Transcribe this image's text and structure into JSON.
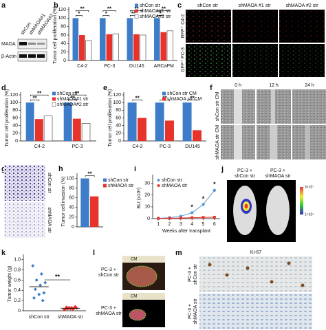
{
  "panel_labels": [
    "a",
    "b",
    "c",
    "d",
    "e",
    "f",
    "g",
    "h",
    "i",
    "j",
    "k",
    "l",
    "m"
  ],
  "blot": {
    "lanes": [
      "shCon",
      "shMAOA#1",
      "shMAOA#2"
    ],
    "proteins": [
      "MAOA",
      "β-Actin"
    ]
  },
  "fluorescence": {
    "columns": [
      "shCon str",
      "shMAOA #1 str",
      "shMAOA #2 str"
    ],
    "rows": [
      "RFP⁺ C4-2",
      "GFP⁺ PC-3"
    ]
  },
  "scratch": {
    "columns": [
      "0 h",
      "12 h",
      "24 h"
    ],
    "rows": [
      "shCon str CM",
      "shMAOA str CM"
    ]
  },
  "invasion_images": {
    "rows": [
      "shCon str",
      "shMAOA str"
    ]
  },
  "bli_images": {
    "mice": [
      [
        "PC-3 +",
        "shCon str"
      ],
      [
        "PC-3 +",
        "shMAOA str"
      ]
    ],
    "scale": [
      "3×10⁷",
      "1×10⁵"
    ]
  },
  "tumor_images": {
    "ruler": "CM",
    "rows": [
      [
        "PC-3 +",
        "shCon str"
      ],
      [
        "PC-3 +",
        "shMAOA str"
      ]
    ]
  },
  "ki67": {
    "title": "Ki-67",
    "rows": [
      [
        "PC-3 +",
        "shCon str"
      ],
      [
        "PC-3 +",
        "shMAOA str"
      ]
    ]
  },
  "chart_data": [
    {
      "type": "bar",
      "ylabel": "Tumor cell proliferation (%)",
      "categories": [
        "C4-2",
        "PC-3",
        "DU145",
        "ARCaPM"
      ],
      "series": [
        {
          "name": "shCon str",
          "color": "#3d7cc9",
          "values": [
            100,
            100,
            100,
            100
          ]
        },
        {
          "name": "shMAOA#1 str",
          "color": "#e8332a",
          "values": [
            60,
            62,
            62,
            67
          ]
        },
        {
          "name": "shMAOA#2 str",
          "color": "#ffffff",
          "values": [
            47,
            63,
            60,
            70
          ]
        }
      ],
      "significance": [
        [
          "*",
          "**"
        ],
        [
          "*",
          "**"
        ],
        [
          "**",
          "**"
        ],
        [
          "*",
          "**"
        ]
      ],
      "ylim": [
        0,
        120
      ],
      "yticks": [
        0,
        20,
        40,
        60,
        80,
        100,
        120
      ]
    },
    {
      "type": "bar",
      "ylabel": "Tumor cell proliferation (%)",
      "categories": [
        "C4-2",
        "PC-3"
      ],
      "series": [
        {
          "name": "shCon str",
          "color": "#3d7cc9",
          "values": [
            100,
            100
          ]
        },
        {
          "name": "shMAOA#1 str",
          "color": "#e8332a",
          "values": [
            57,
            58
          ]
        },
        {
          "name": "shMAOA#2 str",
          "color": "#ffffff",
          "values": [
            65,
            46
          ]
        }
      ],
      "significance": [
        [
          "**",
          "**"
        ],
        [
          "**",
          "**"
        ]
      ],
      "ylim": [
        0,
        120
      ],
      "yticks": [
        0,
        20,
        40,
        60,
        80,
        100,
        120
      ]
    },
    {
      "type": "bar",
      "ylabel": "Tumor cell proliferation (%)",
      "categories": [
        "C4-2",
        "PC-3",
        "DU145"
      ],
      "series": [
        {
          "name": "shCon str CM",
          "color": "#3d7cc9",
          "values": [
            100,
            100,
            100
          ]
        },
        {
          "name": "shMAOA str CM",
          "color": "#e8332a",
          "values": [
            60,
            53,
            28
          ]
        }
      ],
      "significance": [
        [
          "**"
        ],
        [
          "**"
        ],
        [
          "**"
        ]
      ],
      "ylim": [
        0,
        120
      ],
      "yticks": [
        0,
        20,
        40,
        60,
        80,
        100,
        120
      ]
    },
    {
      "type": "bar",
      "ylabel": "Tumor cell invasion (%)",
      "series": [
        {
          "name": "shCon str",
          "color": "#3d7cc9",
          "values": [
            100
          ]
        },
        {
          "name": "shMAOA str",
          "color": "#e8332a",
          "values": [
            63
          ]
        }
      ],
      "significance": [
        [
          "**"
        ]
      ],
      "ylim": [
        0,
        105
      ],
      "yticks": [
        0,
        20,
        40,
        60,
        80,
        100
      ]
    },
    {
      "type": "line",
      "ylabel": "BLI (x10⁶)",
      "xlabel": "Weeks after transplant",
      "x": [
        1,
        2,
        3,
        4,
        5,
        6
      ],
      "series": [
        {
          "name": "shCon str",
          "color": "#5b9bd5",
          "values": [
            0.3,
            0.8,
            2,
            5,
            12,
            24
          ]
        },
        {
          "name": "shMAOA str",
          "color": "#e8332a",
          "values": [
            0.2,
            0.3,
            0.5,
            0.8,
            1,
            1.2
          ]
        }
      ],
      "significance": [
        null,
        null,
        null,
        "*",
        "*",
        "*"
      ],
      "xlim": [
        0.5,
        6.5
      ],
      "xticks": [
        1,
        2,
        3,
        4,
        5,
        6
      ],
      "ylim": [
        0,
        35
      ],
      "yticks": [
        0,
        10,
        20,
        30
      ]
    },
    {
      "type": "strip",
      "ylabel": "Tumor weight (g)",
      "categories": [
        "shCon str",
        "shMAOA str"
      ],
      "groups": [
        {
          "color": "#3d7cc9",
          "mean": 0.47,
          "values": [
            0.88,
            0.72,
            0.6,
            0.55,
            0.5,
            0.42,
            0.35,
            0.32,
            0.25,
            0.2
          ]
        },
        {
          "color": "#e8332a",
          "mean": 0.05,
          "values": [
            0.02,
            0.03,
            0.04,
            0.05,
            0.06,
            0.07,
            0.08,
            0.04,
            0.03,
            0.05,
            0.06
          ]
        }
      ],
      "significance": "**",
      "ylim": [
        0,
        1.05
      ],
      "yticks": [
        0,
        0.2,
        0.4,
        0.6,
        0.8,
        {
          "value": 1,
          "label": "1.0"
        }
      ]
    }
  ]
}
